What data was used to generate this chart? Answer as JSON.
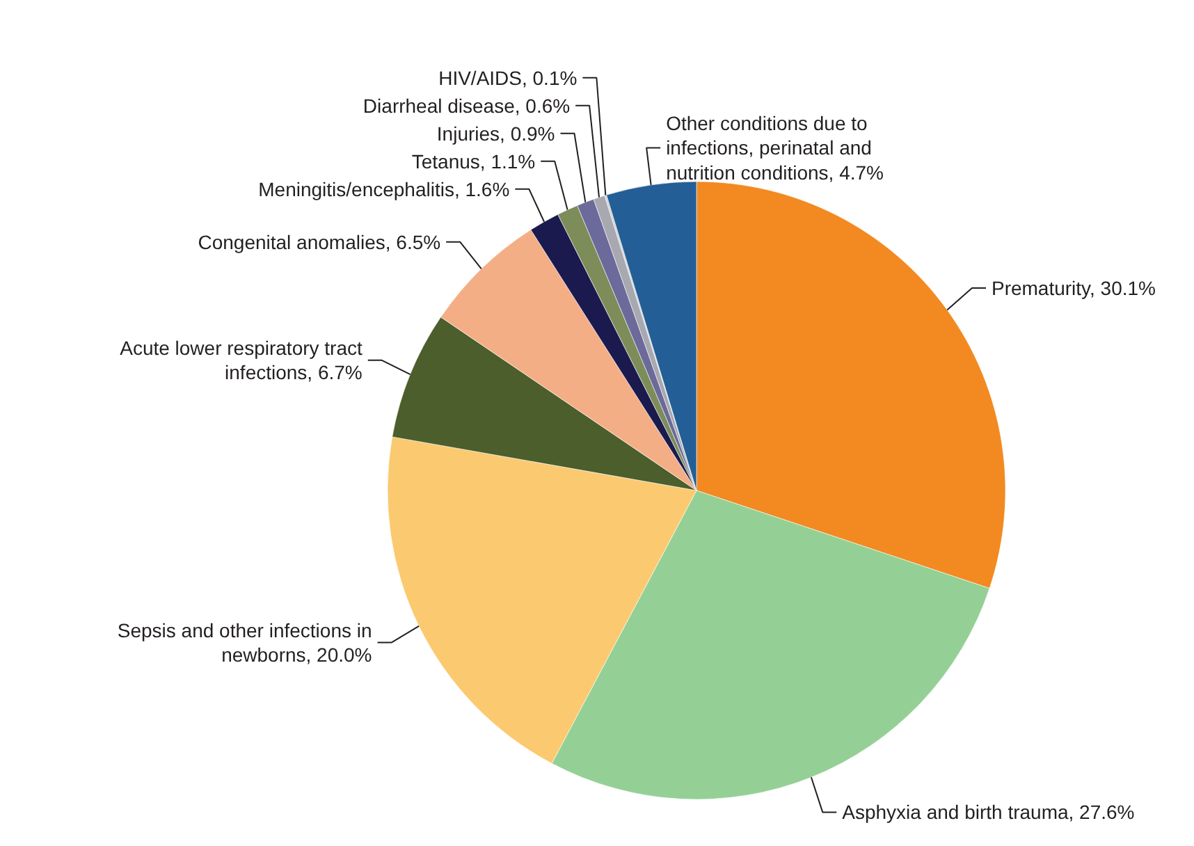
{
  "chart_data": {
    "type": "pie",
    "categories": [
      "Prematurity",
      "Asphyxia and birth trauma",
      "Sepsis and other infections in newborns",
      "Acute lower respiratory tract infections",
      "Congenital anomalies",
      "Meningitis/encephalitis",
      "Tetanus",
      "Injuries",
      "Diarrheal disease",
      "HIV/AIDS",
      "Other conditions due to infections, perinatal and nutrition conditions"
    ],
    "values": [
      30.1,
      27.6,
      20.0,
      6.7,
      6.5,
      1.6,
      1.1,
      0.9,
      0.6,
      0.1,
      4.7
    ],
    "value_labels": [
      "30.1%",
      "27.6%",
      "20.0%",
      "6.7%",
      "6.5%",
      "1.6%",
      "1.1%",
      "0.9%",
      "0.6%",
      "0.1%",
      "4.7%"
    ],
    "colors": [
      "#f28a21",
      "#94d095",
      "#fbc96f",
      "#4b5e2b",
      "#f4ae85",
      "#1b1a4f",
      "#7c8d5a",
      "#6b6a9a",
      "#a8a8b0",
      "#d0d0d4",
      "#235f96"
    ],
    "legend": false
  }
}
